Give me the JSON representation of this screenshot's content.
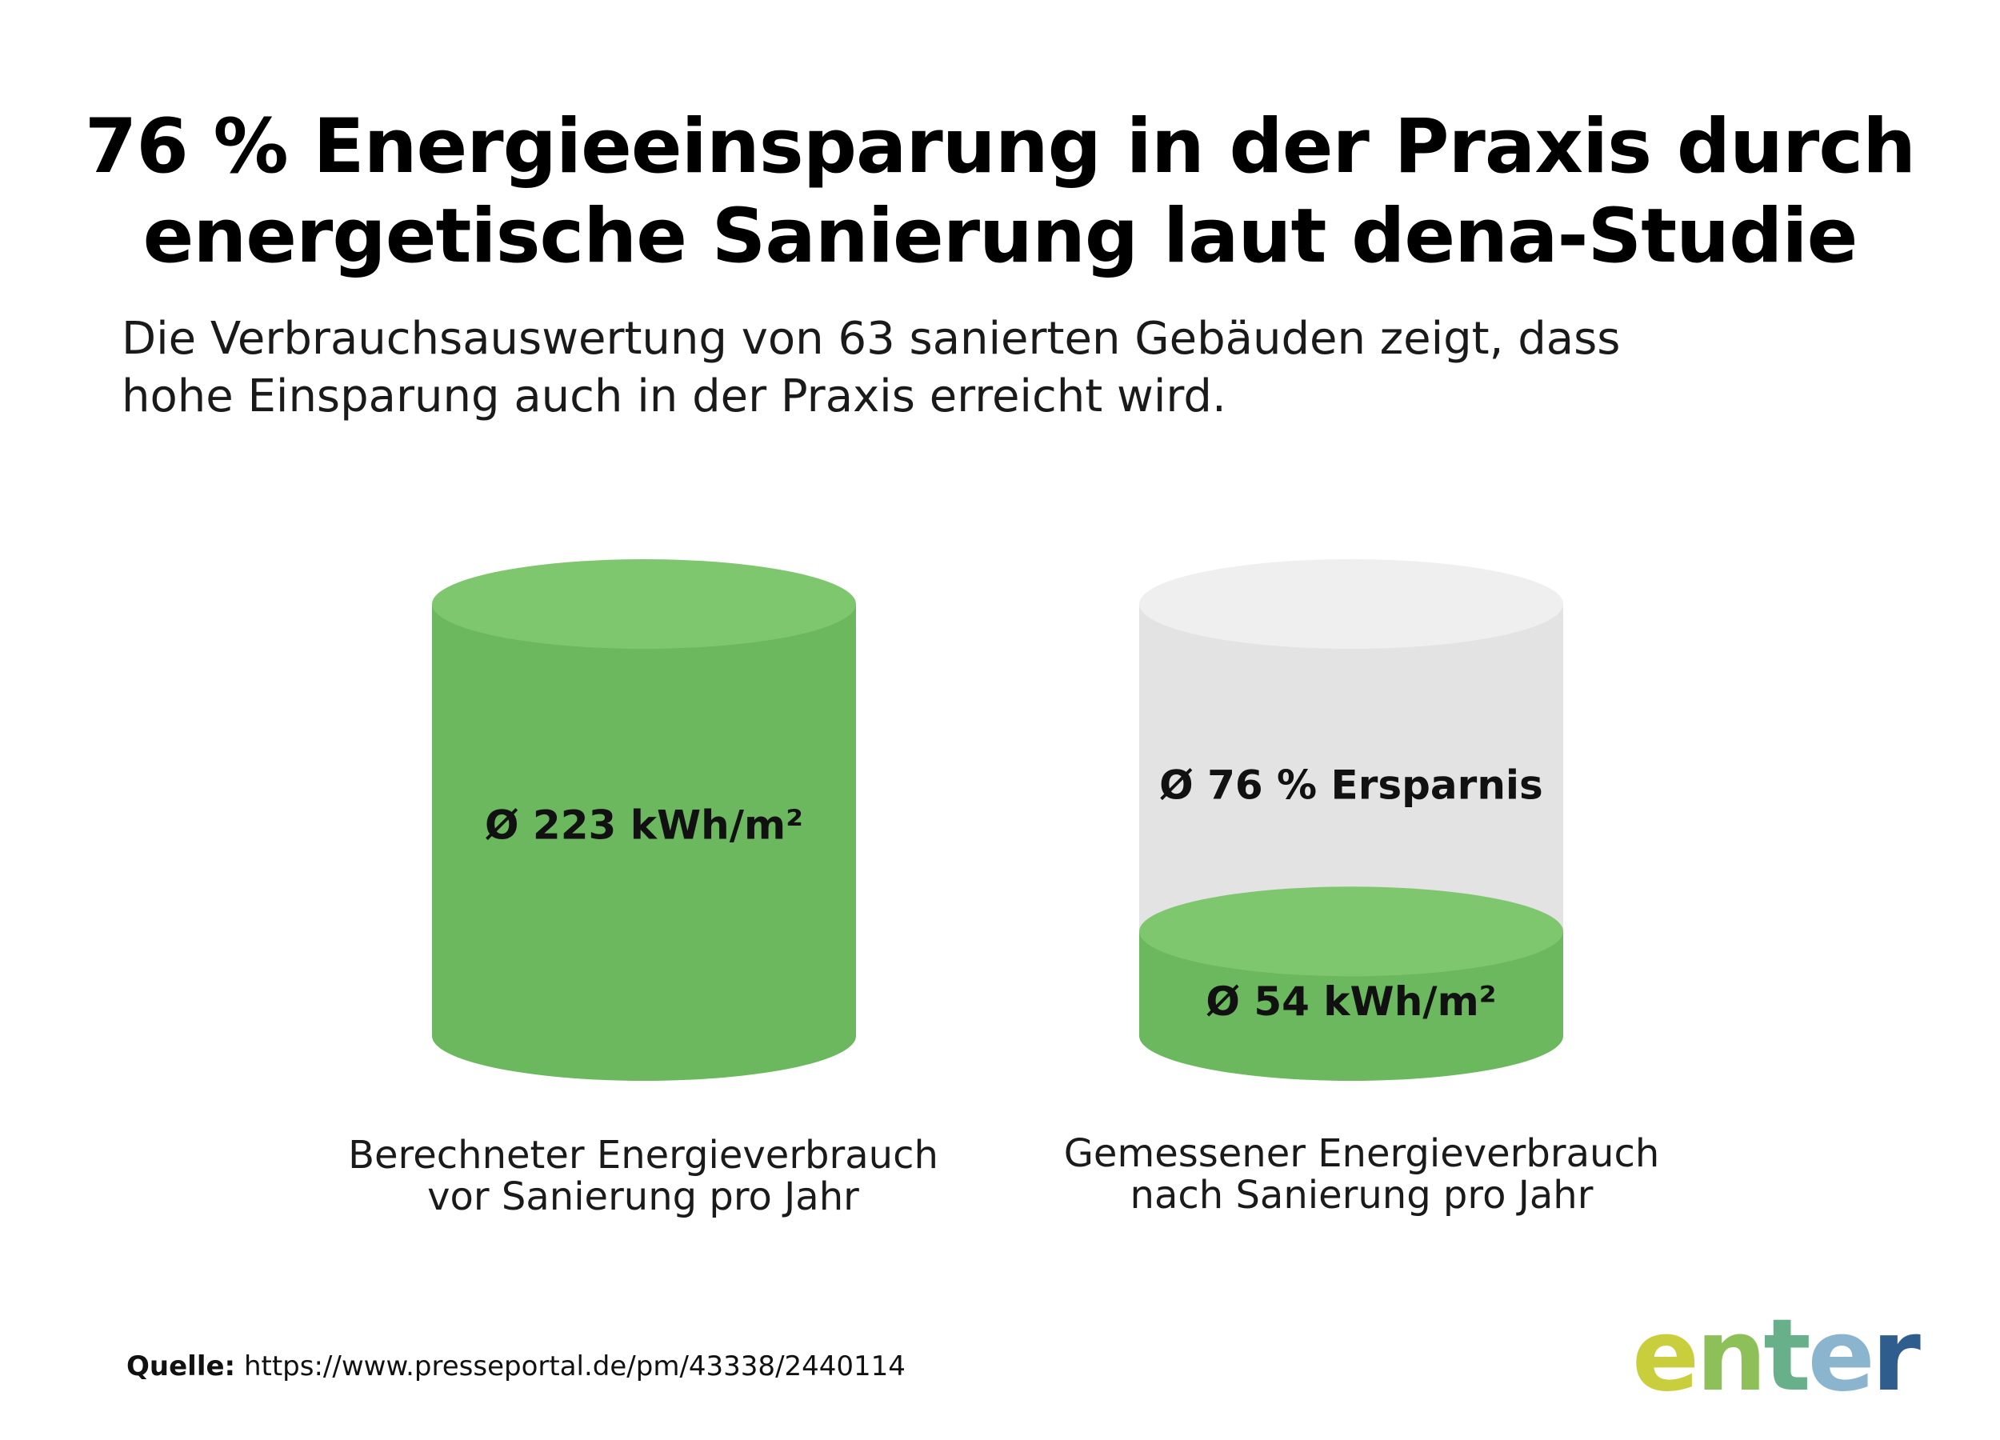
{
  "title_lines": [
    "76 % Energieeinsparung in der Praxis durch",
    "energetische Sanierung laut dena-Studie"
  ],
  "subtitle_lines": [
    "Die Verbrauchsauswertung von 63 sanierten Gebäuden zeigt, dass",
    "hohe Einsparung auch in der Praxis erreicht wird."
  ],
  "chart_data": {
    "type": "bar",
    "categories": [
      "Berechneter Energieverbrauch vor Sanierung pro Jahr",
      "Gemessener Energieverbrauch nach Sanierung pro Jahr"
    ],
    "values": [
      223,
      54
    ],
    "unit": "kWh/m²",
    "value_labels": [
      "Ø 223 kWh/m²",
      "Ø 54 kWh/m²"
    ],
    "savings_label": "Ø 76 % Ersparnis",
    "savings_percent": 76,
    "caption_lines": [
      [
        "Berechneter Energieverbrauch",
        "vor Sanierung pro Jahr"
      ],
      [
        "Gemessener Energieverbrauch",
        "nach Sanierung pro Jahr"
      ]
    ],
    "grid": false,
    "colors": {
      "fill_side": "#6cb85e",
      "fill_top": "#7fc76e",
      "empty_side": "#e3e3e3",
      "empty_top": "#efefef"
    }
  },
  "source": {
    "label": "Quelle:",
    "url": "https://www.presseportal.de/pm/43338/2440114"
  },
  "logo": {
    "text": "enter",
    "colors": [
      "#c9cf3c",
      "#8ec05a",
      "#68b08a",
      "#8bb5cf",
      "#2f5e8e"
    ]
  }
}
